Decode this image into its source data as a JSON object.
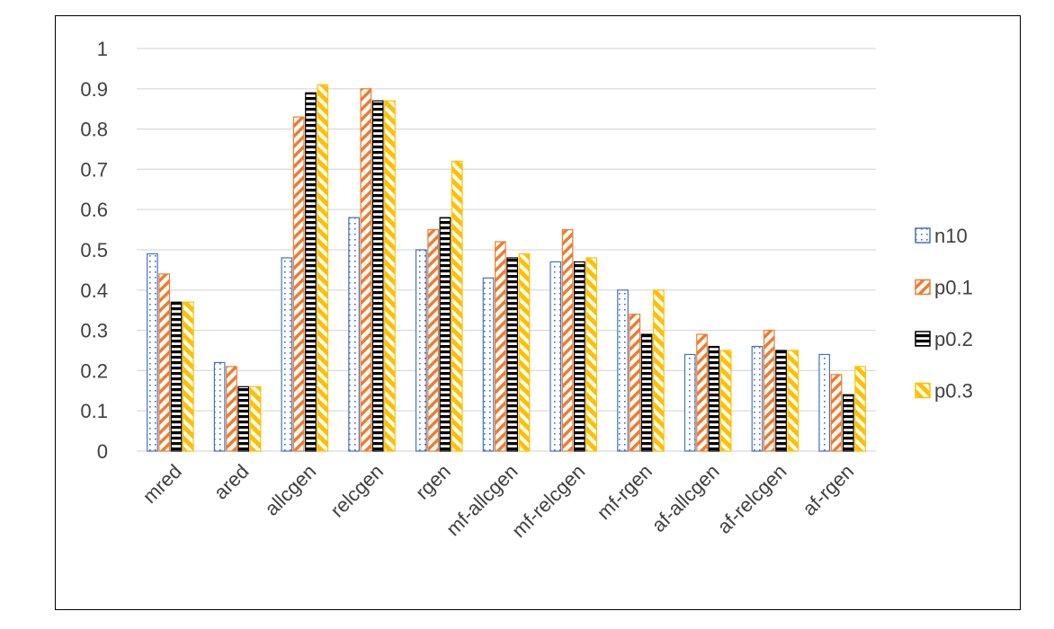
{
  "chart_data": {
    "type": "bar",
    "title": "",
    "xlabel": "",
    "ylabel": "",
    "ylim": [
      0,
      1
    ],
    "yticks": [
      "0",
      "0.1",
      "0.2",
      "0.3",
      "0.4",
      "0.5",
      "0.6",
      "0.7",
      "0.8",
      "0.9",
      "1"
    ],
    "grid": true,
    "legend_position": "right",
    "categories": [
      "mred",
      "ared",
      "allcgen",
      "relcgen",
      "rgen",
      "mf-allcgen",
      "mf-relcgen",
      "mf-rgen",
      "af-allcgen",
      "af-relcgen",
      "af-rgen"
    ],
    "series": [
      {
        "name": "n10",
        "color": "#4472C4",
        "pattern": "dots",
        "values": [
          0.49,
          0.22,
          0.48,
          0.58,
          0.5,
          0.43,
          0.47,
          0.4,
          0.24,
          0.26,
          0.24
        ]
      },
      {
        "name": "p0.1",
        "color": "#ED7D31",
        "pattern": "diagonal",
        "values": [
          0.44,
          0.21,
          0.83,
          0.9,
          0.55,
          0.52,
          0.55,
          0.34,
          0.29,
          0.3,
          0.19
        ]
      },
      {
        "name": "p0.2",
        "color": "#000000",
        "pattern": "horizontal",
        "values": [
          0.37,
          0.16,
          0.89,
          0.87,
          0.58,
          0.48,
          0.47,
          0.29,
          0.26,
          0.25,
          0.14
        ]
      },
      {
        "name": "p0.3",
        "color": "#FFC000",
        "pattern": "wide-diagonal",
        "values": [
          0.37,
          0.16,
          0.91,
          0.87,
          0.72,
          0.49,
          0.48,
          0.4,
          0.25,
          0.25,
          0.21
        ]
      }
    ]
  }
}
